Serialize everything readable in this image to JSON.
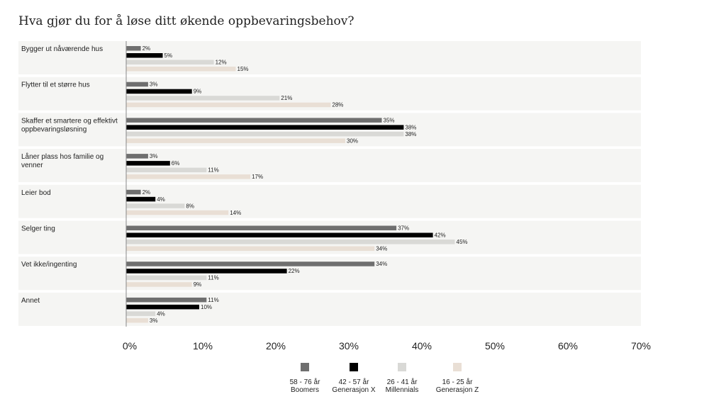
{
  "chart_data": {
    "type": "bar",
    "orientation": "horizontal",
    "title": "Hva gjør du for å løse ditt økende oppbevaringsbehov?",
    "categories": [
      [
        "Bygger ut nåværende hus"
      ],
      [
        "Flytter til et større hus"
      ],
      [
        "Skaffer et smartere og effektivt",
        "oppbevaringsløsning"
      ],
      [
        "Låner plass hos familie og",
        "venner"
      ],
      [
        "Leier bod"
      ],
      [
        "Selger ting"
      ],
      [
        "Vet ikke/ingenting"
      ],
      [
        "Annet"
      ]
    ],
    "series": [
      {
        "name": "58 - 76 år",
        "group": "Boomers",
        "color": "#6f6f6f",
        "values": [
          2,
          3,
          35,
          3,
          2,
          37,
          34,
          11
        ]
      },
      {
        "name": "42 - 57 år",
        "group": "Generasjon X",
        "color": "#000000",
        "values": [
          5,
          9,
          38,
          6,
          4,
          42,
          22,
          10
        ]
      },
      {
        "name": "26 - 41 år",
        "group": "Millennials",
        "color": "#d9d9d6",
        "values": [
          12,
          21,
          38,
          11,
          8,
          45,
          11,
          4
        ]
      },
      {
        "name": "16 - 25 år",
        "group": "Generasjon Z",
        "color": "#e9dfd5",
        "values": [
          15,
          28,
          30,
          17,
          14,
          34,
          9,
          3
        ]
      }
    ],
    "xlim": [
      0,
      70
    ],
    "x_ticks": [
      "0%",
      "10%",
      "20%",
      "30%",
      "40%",
      "50%",
      "60%",
      "70%"
    ],
    "value_suffix": "%",
    "row_background": "#f5f5f3",
    "legend_position": "bottom"
  }
}
